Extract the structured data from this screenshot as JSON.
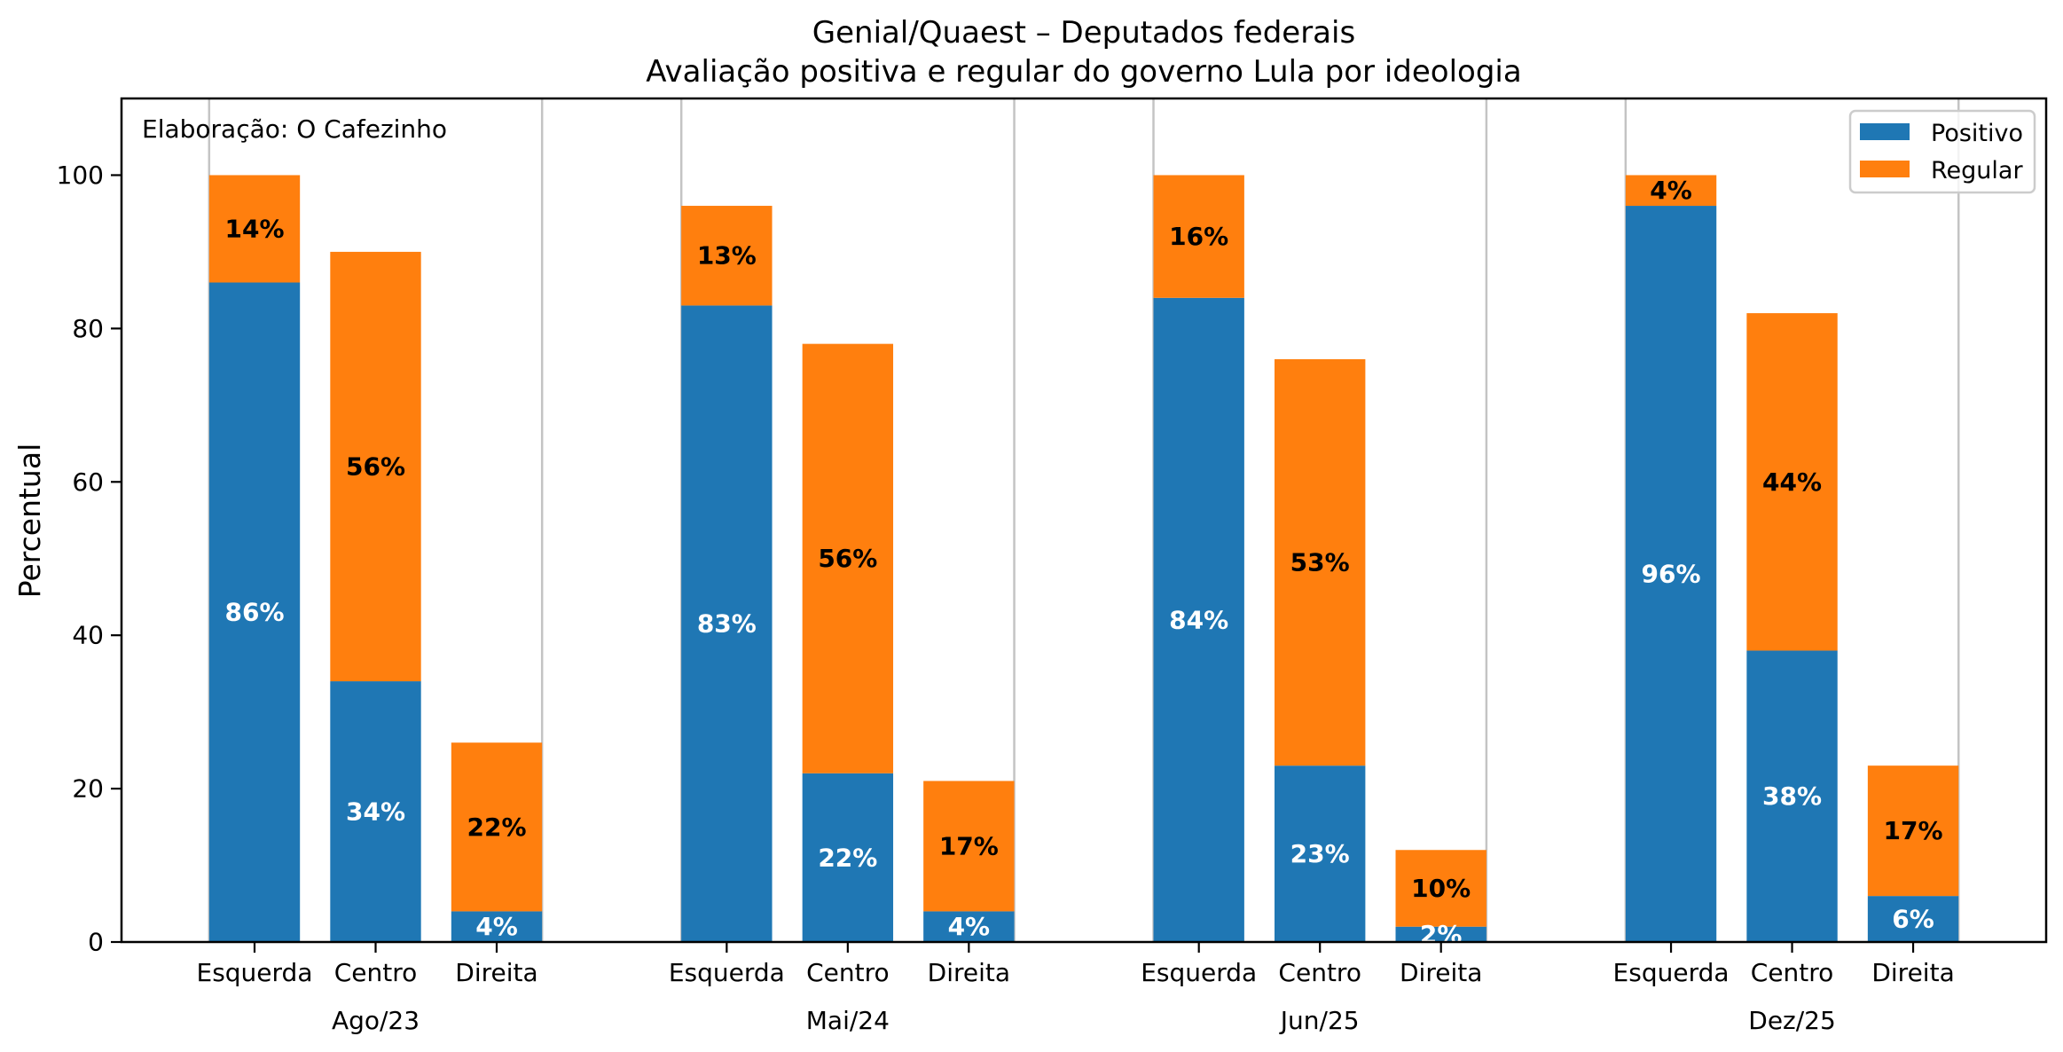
{
  "chart_data": {
    "type": "bar",
    "stacked": true,
    "title": [
      "Genial/Quaest – Deputados federais",
      "Avaliação positiva e regular do governo Lula por ideologia"
    ],
    "xlabel": "",
    "ylabel": "Percentual",
    "ylim": [
      0,
      110
    ],
    "yticks": [
      0,
      20,
      40,
      60,
      80,
      100
    ],
    "grid": "vertical lines at group edges",
    "annotation": "Elaboração: O Cafezinho",
    "annotation_position": "top-left",
    "legend": {
      "position": "top-right",
      "entries": [
        "Positivo",
        "Regular"
      ]
    },
    "colors": {
      "Positivo": "#1f77b4",
      "Regular": "#ff7f0e"
    },
    "groups": [
      "Ago/23",
      "Mai/24",
      "Jun/25",
      "Dez/25"
    ],
    "categories": [
      "Esquerda",
      "Centro",
      "Direita"
    ],
    "series": [
      {
        "name": "Positivo",
        "values": [
          [
            86,
            34,
            4
          ],
          [
            83,
            22,
            4
          ],
          [
            84,
            23,
            2
          ],
          [
            96,
            38,
            6
          ]
        ]
      },
      {
        "name": "Regular",
        "values": [
          [
            14,
            56,
            22
          ],
          [
            13,
            56,
            17
          ],
          [
            16,
            53,
            10
          ],
          [
            4,
            44,
            17
          ]
        ]
      }
    ],
    "value_label_suffix": "%"
  }
}
